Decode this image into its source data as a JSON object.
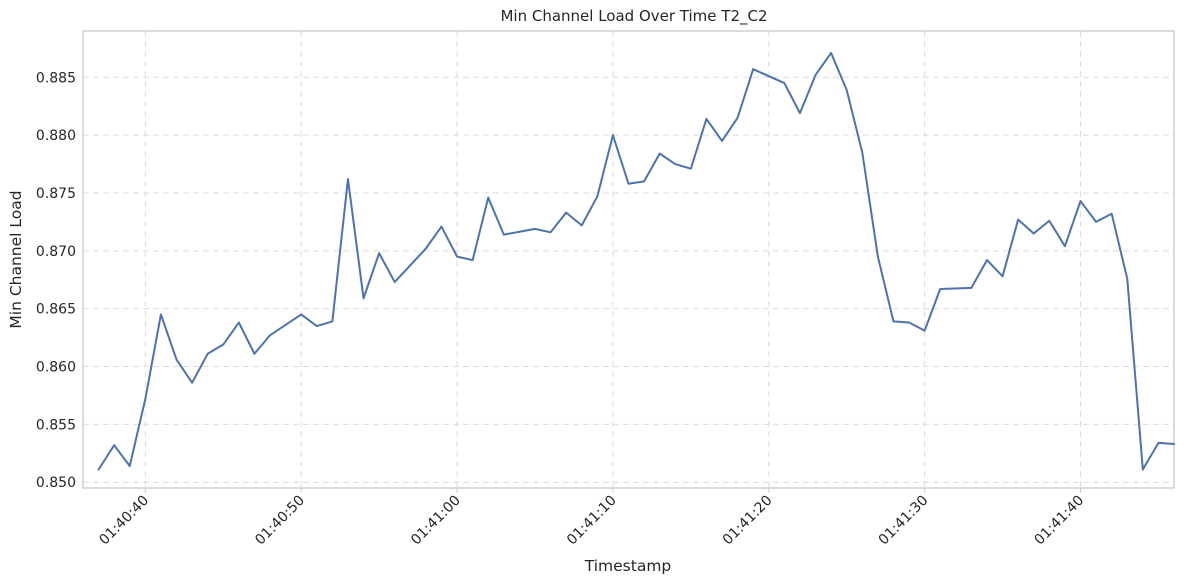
{
  "chart_data": {
    "type": "line",
    "title": "Min Channel Load Over Time T2_C2",
    "xlabel": "Timestamp",
    "ylabel": "Min Channel Load",
    "x_range": [
      "01:40:36",
      "01:41:46"
    ],
    "ylim": [
      0.8495,
      0.889
    ],
    "x_ticks": [
      "01:40:40",
      "01:40:50",
      "01:41:00",
      "01:41:10",
      "01:41:20",
      "01:41:30",
      "01:41:40"
    ],
    "y_ticks": [
      "0.850",
      "0.855",
      "0.860",
      "0.865",
      "0.870",
      "0.875",
      "0.880",
      "0.885"
    ],
    "grid": true,
    "series": [
      {
        "color": "#4c72b0",
        "points": [
          [
            "01:40:37",
            0.8511
          ],
          [
            "01:40:38",
            0.8532
          ],
          [
            "01:40:39",
            0.8514
          ],
          [
            "01:40:40",
            0.8572
          ],
          [
            "01:40:41",
            0.8645
          ],
          [
            "01:40:42",
            0.8606
          ],
          [
            "01:40:43",
            0.8586
          ],
          [
            "01:40:44",
            0.8611
          ],
          [
            "01:40:45",
            0.8619
          ],
          [
            "01:40:46",
            0.8638
          ],
          [
            "01:40:47",
            0.8611
          ],
          [
            "01:40:48",
            0.8627
          ],
          [
            "01:40:50",
            0.8645
          ],
          [
            "01:40:51",
            0.8635
          ],
          [
            "01:40:52",
            0.8639
          ],
          [
            "01:40:53",
            0.8762
          ],
          [
            "01:40:54",
            0.8659
          ],
          [
            "01:40:55",
            0.8698
          ],
          [
            "01:40:56",
            0.8673
          ],
          [
            "01:40:58",
            0.8702
          ],
          [
            "01:40:59",
            0.8721
          ],
          [
            "01:41:00",
            0.8695
          ],
          [
            "01:41:01",
            0.8692
          ],
          [
            "01:41:02",
            0.8746
          ],
          [
            "01:41:03",
            0.8714
          ],
          [
            "01:41:05",
            0.8719
          ],
          [
            "01:41:06",
            0.8716
          ],
          [
            "01:41:07",
            0.8733
          ],
          [
            "01:41:08",
            0.8722
          ],
          [
            "01:41:09",
            0.8747
          ],
          [
            "01:41:10",
            0.88
          ],
          [
            "01:41:11",
            0.8758
          ],
          [
            "01:41:12",
            0.876
          ],
          [
            "01:41:13",
            0.8784
          ],
          [
            "01:41:14",
            0.8775
          ],
          [
            "01:41:15",
            0.8771
          ],
          [
            "01:41:16",
            0.8814
          ],
          [
            "01:41:17",
            0.8795
          ],
          [
            "01:41:18",
            0.8815
          ],
          [
            "01:41:19",
            0.8857
          ],
          [
            "01:41:21",
            0.8845
          ],
          [
            "01:41:22",
            0.8819
          ],
          [
            "01:41:23",
            0.8852
          ],
          [
            "01:41:24",
            0.8871
          ],
          [
            "01:41:25",
            0.8839
          ],
          [
            "01:41:26",
            0.8785
          ],
          [
            "01:41:27",
            0.8695
          ],
          [
            "01:41:28",
            0.8639
          ],
          [
            "01:41:29",
            0.8638
          ],
          [
            "01:41:30",
            0.8631
          ],
          [
            "01:41:31",
            0.8667
          ],
          [
            "01:41:33",
            0.8668
          ],
          [
            "01:41:34",
            0.8692
          ],
          [
            "01:41:35",
            0.8678
          ],
          [
            "01:41:36",
            0.8727
          ],
          [
            "01:41:37",
            0.8715
          ],
          [
            "01:41:38",
            0.8726
          ],
          [
            "01:41:39",
            0.8704
          ],
          [
            "01:41:40",
            0.8743
          ],
          [
            "01:41:41",
            0.8725
          ],
          [
            "01:41:42",
            0.8732
          ],
          [
            "01:41:43",
            0.8676
          ],
          [
            "01:41:44",
            0.8511
          ],
          [
            "01:41:45",
            0.8534
          ],
          [
            "01:41:46",
            0.8533
          ]
        ]
      }
    ]
  }
}
